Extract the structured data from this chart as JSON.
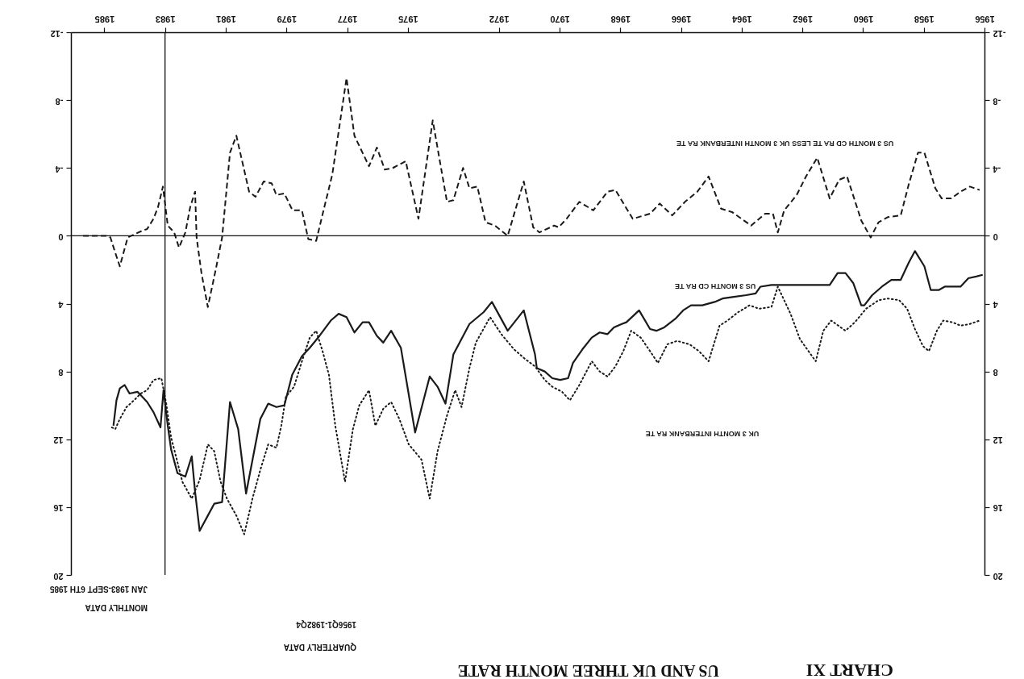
{
  "chart_data": {
    "type": "line",
    "title": "CHART XI",
    "subtitle": "US AND UK THREE MONTH RATE",
    "annotations": [
      "QUARTERLY DATA",
      "1956Q1-1982Q4",
      "MONTHLY DATA",
      "JAN 1983-SEPT 6TH 1985"
    ],
    "xlim": [
      1986.1,
      1956
    ],
    "xticks": [
      1956,
      1958,
      1960,
      1962,
      1964,
      1966,
      1968,
      1970,
      1972,
      1975,
      1977,
      1979,
      1981,
      1983,
      1985
    ],
    "ylim": [
      20,
      -12
    ],
    "yticks": [
      -12,
      -8,
      -4,
      0,
      4,
      8,
      12,
      16,
      20
    ],
    "y2lim": [
      20,
      -12
    ],
    "y2ticks": [
      -12,
      -8,
      -4,
      0,
      4,
      8,
      12,
      16,
      20
    ],
    "ref_lines": [
      {
        "axis": "y",
        "value": 0
      },
      {
        "axis": "x",
        "value": 1983
      }
    ],
    "series": [
      {
        "name": "US 3 MONTH CD RA TE",
        "color": "#1a1a1a",
        "line_style": "solid",
        "x": [
          1956.06,
          1956.27,
          1956.53,
          1956.79,
          1957.31,
          1957.51,
          1957.77,
          1957.98,
          1958.29,
          1958.5,
          1958.76,
          1959.07,
          1959.38,
          1959.7,
          1959.96,
          1960.06,
          1960.32,
          1960.58,
          1960.84,
          1961.1,
          1962.81,
          1963.02,
          1963.38,
          1963.54,
          1963.85,
          1964.26,
          1964.63,
          1964.89,
          1965.3,
          1965.67,
          1965.93,
          1966.19,
          1966.55,
          1966.81,
          1967.02,
          1967.38,
          1967.8,
          1967.95,
          1968.21,
          1968.42,
          1968.68,
          1968.94,
          1969.25,
          1969.56,
          1969.72,
          1969.98,
          1970.24,
          1970.49,
          1970.75,
          1970.81,
          1971.18,
          1971.71,
          1972.23,
          1972.5,
          1972.97,
          1973.5,
          1973.76,
          1974.02,
          1974.28,
          1974.76,
          1975.23,
          1975.55,
          1975.81,
          1976.02,
          1976.28,
          1976.49,
          1976.76,
          1977.02,
          1977.28,
          1977.54,
          1977.91,
          1978.23,
          1978.49,
          1978.81,
          1979.07,
          1979.33,
          1979.6,
          1979.86,
          1980.33,
          1980.59,
          1980.86,
          1981.12,
          1981.38,
          1981.59,
          1981.86,
          1982.01,
          1982.12,
          1982.33,
          1982.59,
          1982.8,
          1982.91,
          1983.05,
          1983.15,
          1983.38,
          1983.59,
          1983.8,
          1983.91,
          1984.17,
          1984.33,
          1984.49,
          1984.6,
          1984.7
        ],
        "values": [
          2.3,
          2.4,
          2.5,
          3.0,
          3.0,
          3.2,
          3.2,
          1.8,
          0.9,
          1.6,
          2.6,
          2.6,
          3.0,
          3.5,
          4.1,
          4.1,
          2.8,
          2.2,
          2.2,
          2.9,
          2.9,
          2.9,
          3.0,
          3.4,
          3.5,
          3.6,
          3.7,
          3.9,
          4.1,
          4.1,
          4.4,
          4.9,
          5.4,
          5.6,
          5.5,
          4.4,
          5.1,
          5.2,
          5.4,
          5.8,
          5.7,
          6.0,
          6.7,
          7.5,
          8.4,
          8.5,
          8.4,
          8.0,
          7.8,
          7.0,
          4.4,
          5.6,
          3.9,
          4.5,
          5.2,
          7.0,
          9.9,
          8.9,
          8.3,
          11.6,
          6.6,
          5.6,
          6.3,
          5.9,
          5.1,
          5.1,
          5.7,
          4.8,
          4.6,
          5.0,
          5.9,
          6.6,
          7.1,
          8.2,
          10.0,
          10.1,
          9.9,
          10.8,
          15.2,
          11.4,
          9.8,
          15.7,
          15.8,
          16.5,
          17.4,
          15.1,
          13.0,
          14.2,
          14.0,
          12.6,
          11.2,
          9.1,
          11.3,
          10.4,
          9.8,
          9.4,
          9.2,
          9.3,
          8.8,
          9.0,
          9.7,
          11.2
        ]
      },
      {
        "name": "UK 3 MONTH INTERBANK RA TE",
        "color": "#1a1a1a",
        "line_style": "dotted",
        "x": [
          1956.16,
          1956.48,
          1956.79,
          1957.05,
          1957.36,
          1957.57,
          1957.83,
          1958.03,
          1958.29,
          1958.55,
          1958.81,
          1959.18,
          1959.49,
          1959.9,
          1960.27,
          1960.58,
          1961.05,
          1961.31,
          1961.56,
          1961.88,
          1962.08,
          1962.39,
          1962.81,
          1963.02,
          1963.43,
          1963.74,
          1964.11,
          1964.47,
          1964.73,
          1965.09,
          1965.41,
          1965.72,
          1966.13,
          1966.45,
          1966.76,
          1967.02,
          1967.33,
          1967.64,
          1967.9,
          1968.16,
          1968.42,
          1968.68,
          1968.94,
          1969.35,
          1969.66,
          1969.92,
          1970.24,
          1970.49,
          1970.81,
          1971.18,
          1971.5,
          1971.92,
          1972.29,
          1972.76,
          1972.97,
          1973.23,
          1973.44,
          1973.71,
          1974.02,
          1974.28,
          1974.55,
          1974.97,
          1975.28,
          1975.55,
          1975.81,
          1976.07,
          1976.28,
          1976.6,
          1976.81,
          1977.07,
          1977.39,
          1977.6,
          1977.81,
          1978.02,
          1978.23,
          1978.49,
          1978.75,
          1979.02,
          1979.17,
          1979.33,
          1979.6,
          1979.86,
          1980.12,
          1980.39,
          1980.65,
          1980.96,
          1981.17,
          1981.38,
          1981.59,
          1981.86,
          1982.12,
          1982.43,
          1982.64,
          1982.8,
          1982.96,
          1983.12,
          1983.38,
          1983.59,
          1983.8,
          1984.02,
          1984.27,
          1984.49,
          1984.64,
          1984.75
        ],
        "values": [
          5.0,
          5.2,
          5.3,
          5.1,
          5.0,
          5.6,
          6.8,
          6.5,
          5.5,
          4.3,
          3.8,
          3.7,
          3.8,
          4.3,
          5.1,
          5.6,
          5.0,
          5.6,
          7.4,
          6.6,
          6.1,
          4.6,
          3.0,
          4.2,
          4.3,
          4.1,
          4.5,
          5.0,
          5.3,
          7.4,
          6.8,
          6.4,
          6.2,
          6.4,
          7.5,
          6.8,
          6.0,
          5.6,
          6.8,
          7.7,
          8.3,
          8.0,
          7.4,
          8.8,
          9.7,
          9.2,
          8.9,
          8.5,
          7.7,
          7.2,
          6.7,
          5.8,
          4.8,
          6.3,
          7.8,
          10.1,
          9.1,
          10.6,
          12.7,
          15.5,
          13.2,
          12.3,
          10.8,
          9.8,
          10.2,
          11.2,
          9.1,
          10.0,
          11.4,
          14.5,
          11.2,
          8.2,
          6.8,
          5.6,
          6.0,
          7.4,
          8.9,
          9.5,
          11.2,
          12.5,
          12.3,
          13.8,
          15.5,
          17.6,
          16.5,
          15.5,
          14.5,
          12.7,
          12.3,
          14.4,
          15.5,
          14.5,
          13.0,
          11.9,
          9.9,
          8.4,
          8.5,
          9.1,
          9.3,
          9.7,
          10.1,
          10.8,
          11.4,
          11.3
        ]
      },
      {
        "name": "US 3 MONTH CD RA TE LESS UK 3 MONTH INTERBANK RA TE",
        "color": "#1a1a1a",
        "line_style": "dashed",
        "x": [
          1956.16,
          1956.48,
          1956.79,
          1957.1,
          1957.41,
          1957.62,
          1957.98,
          1958.19,
          1958.5,
          1958.76,
          1959.18,
          1959.49,
          1959.75,
          1960.06,
          1960.53,
          1960.79,
          1961.1,
          1961.51,
          1961.88,
          1962.19,
          1962.6,
          1962.81,
          1962.97,
          1963.23,
          1963.69,
          1964.32,
          1964.68,
          1965.09,
          1965.46,
          1965.87,
          1966.29,
          1966.7,
          1967.02,
          1967.59,
          1968.16,
          1968.42,
          1968.89,
          1969.35,
          1969.77,
          1970.03,
          1970.18,
          1970.66,
          1970.87,
          1971.18,
          1971.71,
          1972.13,
          1972.44,
          1972.71,
          1972.97,
          1973.18,
          1973.5,
          1973.71,
          1974.18,
          1974.65,
          1975.07,
          1975.49,
          1975.76,
          1976.02,
          1976.28,
          1976.76,
          1977.02,
          1977.49,
          1977.75,
          1978.02,
          1978.28,
          1978.49,
          1978.8,
          1979.07,
          1979.33,
          1979.49,
          1979.75,
          1980.02,
          1980.23,
          1980.65,
          1980.86,
          1981.12,
          1981.33,
          1981.59,
          1981.8,
          1981.96,
          1982.01,
          1982.17,
          1982.33,
          1982.54,
          1982.7,
          1982.91,
          1983.07,
          1983.23,
          1983.38,
          1983.59,
          1983.75,
          1984.23,
          1984.49,
          1984.64,
          1984.8,
          1984.91,
          1985.7
        ],
        "values": [
          -2.7,
          -2.9,
          -2.6,
          -2.2,
          -2.2,
          -2.8,
          -4.9,
          -4.9,
          -3.0,
          -1.2,
          -1.1,
          -0.8,
          0.1,
          -0.9,
          -3.5,
          -3.3,
          -2.2,
          -4.6,
          -3.5,
          -2.4,
          -1.5,
          -0.2,
          -1.3,
          -1.3,
          -0.6,
          -1.4,
          -1.6,
          -3.5,
          -2.6,
          -2.0,
          -1.2,
          -1.9,
          -1.3,
          -1.0,
          -2.7,
          -2.6,
          -1.5,
          -2.0,
          -1.0,
          -0.5,
          -0.6,
          -0.2,
          -0.5,
          -3.2,
          0.0,
          -0.6,
          -0.8,
          -2.9,
          -2.8,
          -4.0,
          -2.1,
          -2.0,
          -6.8,
          -1.0,
          -4.4,
          -4.0,
          -3.9,
          -5.2,
          -4.1,
          -5.9,
          -9.3,
          -3.6,
          -1.7,
          0.3,
          0.2,
          -1.5,
          -1.5,
          -2.5,
          -2.4,
          -3.1,
          -3.2,
          -2.3,
          -2.6,
          -5.9,
          -4.9,
          0.1,
          2.0,
          4.2,
          2.2,
          0.1,
          -2.6,
          -1.7,
          -0.2,
          0.7,
          -0.2,
          -0.6,
          -2.9,
          -1.7,
          -1.0,
          -0.4,
          -0.3,
          0.1,
          1.8,
          1.0,
          0.1,
          0.0,
          0.0
        ]
      }
    ]
  }
}
